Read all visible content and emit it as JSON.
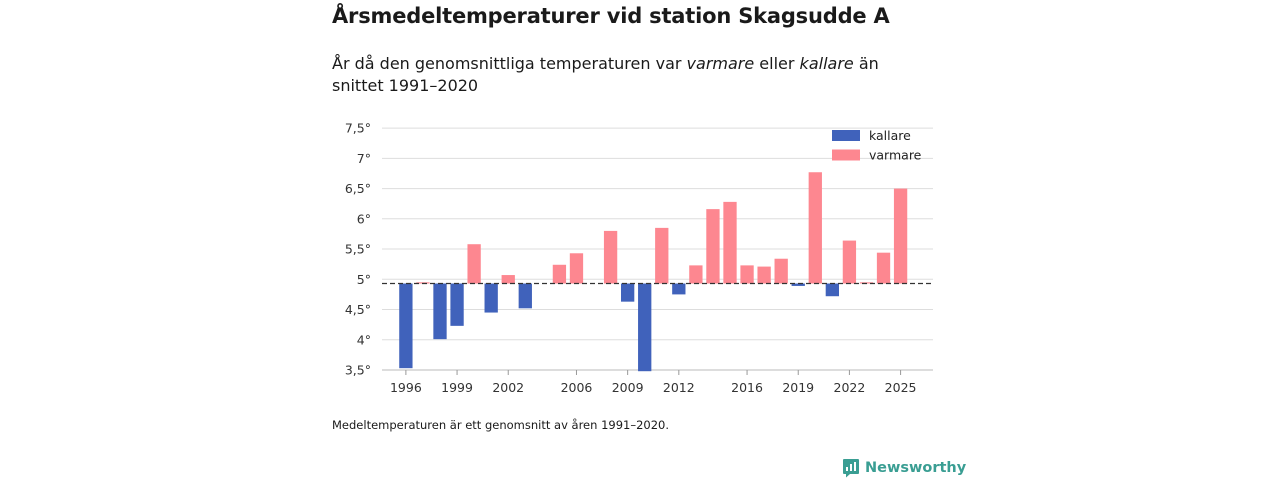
{
  "title": "Årsmedeltemperaturer vid station Skagsudde A",
  "subtitle": {
    "before": "År då den genomsnittliga temperaturen var ",
    "warm_word": "varmare",
    "middle": " eller ",
    "cold_word": "kallare",
    "after": " än snittet 1991–2020"
  },
  "footnote": "Medeltemperaturen är ett genomsnitt av åren 1991–2020.",
  "brand": {
    "name": "Newsworthy",
    "icon": "newsworthy-logo-icon"
  },
  "colors": {
    "cold": "#4062bb",
    "warm": "#fd8790",
    "baseline": "#333333",
    "grid": "#dddddd",
    "brand": "#3a9e93"
  },
  "chart_data": {
    "type": "bar",
    "title": "Årsmedeltemperaturer vid station Skagsudde A",
    "xlabel": "",
    "ylabel": "",
    "baseline": 4.93,
    "ylim": [
      3.5,
      7.7
    ],
    "yticks": [
      3.5,
      4,
      4.5,
      5,
      5.5,
      6,
      6.5,
      7,
      7.5
    ],
    "ytick_labels": [
      "3,5°",
      "4°",
      "4,5°",
      "5°",
      "5,5°",
      "6°",
      "6,5°",
      "7°",
      "7,5°"
    ],
    "xlim": [
      1994.6,
      2026.9
    ],
    "xticks": [
      1996,
      1999,
      2002,
      2006,
      2009,
      2012,
      2016,
      2019,
      2022,
      2025
    ],
    "xtick_labels": [
      "1996",
      "1999",
      "2002",
      "2006",
      "2009",
      "2012",
      "2016",
      "2019",
      "2022",
      "2025"
    ],
    "legend": {
      "position": "top-right",
      "entries": [
        {
          "key": "cold",
          "label": "kallare"
        },
        {
          "key": "warm",
          "label": "varmare"
        }
      ]
    },
    "years": [
      1996,
      1997,
      1998,
      1999,
      2000,
      2001,
      2002,
      2003,
      2005,
      2006,
      2008,
      2009,
      2010,
      2011,
      2012,
      2013,
      2014,
      2015,
      2016,
      2017,
      2018,
      2019,
      2020,
      2021,
      2022,
      2023,
      2024,
      2025
    ],
    "values": [
      3.53,
      4.95,
      4.01,
      4.23,
      5.58,
      4.45,
      5.07,
      4.52,
      5.24,
      5.43,
      5.8,
      4.63,
      3.48,
      5.85,
      4.75,
      5.23,
      6.16,
      6.28,
      5.23,
      5.21,
      5.34,
      4.89,
      6.77,
      4.72,
      5.64,
      4.95,
      5.44,
      6.5
    ]
  }
}
